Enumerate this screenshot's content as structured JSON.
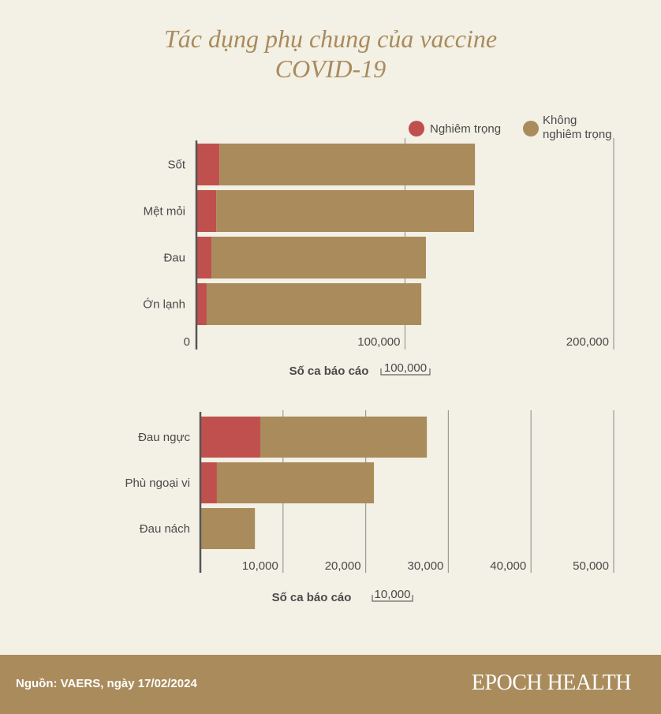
{
  "title_line1": "Tác dụng phụ chung của vaccine",
  "title_line2": "COVID-19",
  "colors": {
    "serious": "#c0504d",
    "non_serious": "#a98b5c",
    "background": "#f3f0e5"
  },
  "legend": {
    "serious": "Nghiêm trọng",
    "non_serious_line1": "Không",
    "non_serious_line2": "nghiêm trọng"
  },
  "chart_data": [
    {
      "type": "bar",
      "orientation": "horizontal",
      "stacked": true,
      "categories": [
        "Sốt",
        "Mệt mỏi",
        "Đau",
        "Ớn lạnh"
      ],
      "series": [
        {
          "name": "Nghiêm trọng",
          "values": [
            11000,
            9500,
            7200,
            4900
          ]
        },
        {
          "name": "Không nghiêm trọng",
          "values": [
            122500,
            123600,
            102800,
            102900
          ]
        }
      ],
      "xlabel": "Số ca báo cáo",
      "xlim": [
        0,
        200000
      ],
      "xticks": [
        0,
        100000,
        200000
      ],
      "xtick_labels": [
        "0",
        "100,000",
        "200,000"
      ],
      "scale_label": "100,000",
      "grid": true,
      "legend": "top-right"
    },
    {
      "type": "bar",
      "orientation": "horizontal",
      "stacked": true,
      "categories": [
        "Đau ngực",
        "Phù ngoại vi",
        "Đau nách"
      ],
      "series": [
        {
          "name": "Nghiêm trọng",
          "values": [
            7250,
            2000,
            100
          ]
        },
        {
          "name": "Không nghiêm trọng",
          "values": [
            20150,
            19000,
            6500
          ]
        }
      ],
      "xlabel": "Số ca báo cáo",
      "xlim": [
        0,
        50000
      ],
      "xticks": [
        10000,
        20000,
        30000,
        40000,
        50000
      ],
      "xtick_labels": [
        "10,000",
        "20,000",
        "30,000",
        "40,000",
        "50,000"
      ],
      "scale_label": "10,000",
      "grid": true
    }
  ],
  "footer": {
    "source": "Nguồn: VAERS, ngày 17/02/2024",
    "brand": "EPOCH HEALTH"
  }
}
